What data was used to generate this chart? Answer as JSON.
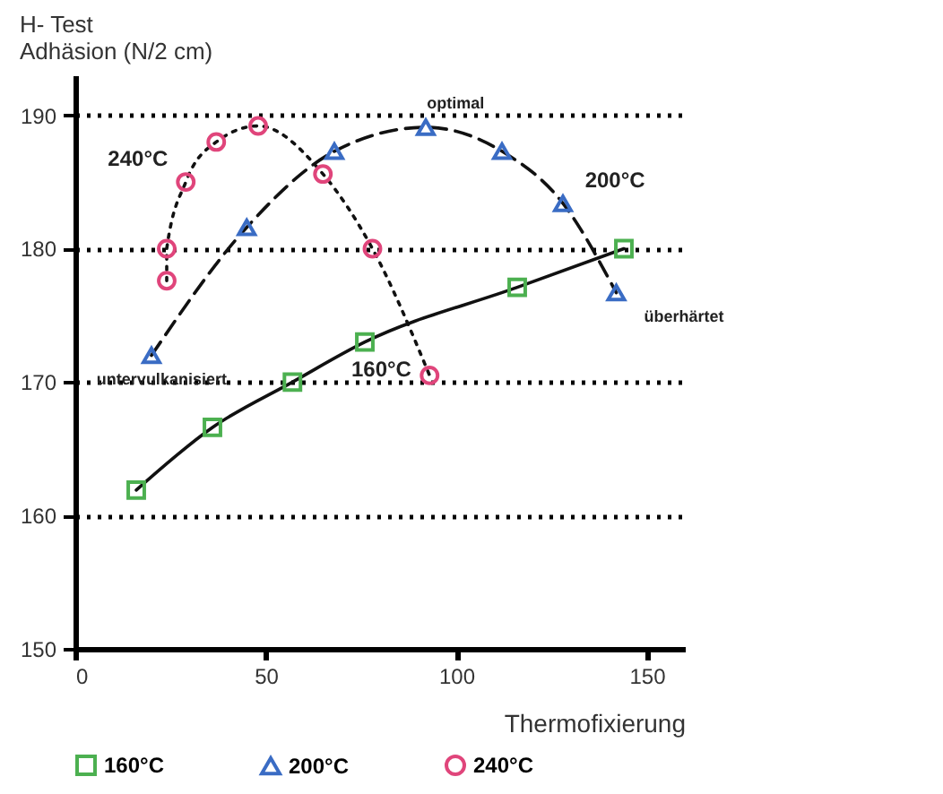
{
  "chart_data": {
    "type": "line",
    "title": "H- Test",
    "ylabel": "Adhäsion (N/2 cm)",
    "xlabel": "Thermofixierung",
    "xlim": [
      0,
      160
    ],
    "xticks": [
      0,
      50,
      100,
      150
    ],
    "ylim": [
      150,
      193
    ],
    "yticks": [
      150,
      160,
      170,
      180,
      190
    ],
    "grid": "y",
    "legend": "bottom",
    "series": [
      {
        "name": "160°C",
        "color": "#4cb050",
        "marker": "square",
        "line_style": "solid",
        "x": [
          16,
          36,
          57,
          76,
          116,
          144
        ],
        "values": [
          161.9,
          166.6,
          170,
          173,
          177.1,
          180
        ]
      },
      {
        "name": "200°C",
        "color": "#3a6cc4",
        "marker": "triangle",
        "line_style": "dashed",
        "x": [
          20,
          45,
          68,
          92,
          112,
          128,
          142
        ],
        "values": [
          172,
          181.6,
          187.3,
          189.1,
          187.3,
          183.4,
          176.7
        ]
      },
      {
        "name": "240°C",
        "color": "#e0457b",
        "marker": "circle",
        "line_style": "dotted",
        "x": [
          24,
          24,
          29,
          37,
          48,
          65,
          78,
          93
        ],
        "values": [
          177.6,
          180,
          185,
          188,
          189.2,
          185.6,
          180,
          170.5
        ]
      }
    ],
    "annotations": [
      {
        "text": "240°C",
        "x": 29,
        "y": 185
      },
      {
        "text": "optimal",
        "x": 92,
        "y": 189.1
      },
      {
        "text": "200°C",
        "x": 128,
        "y": 183.4
      },
      {
        "text": "überhärtet",
        "x": 142,
        "y": 176.7
      },
      {
        "text": "untervulkanisiert",
        "x": 20,
        "y": 172
      },
      {
        "text": "160°C",
        "x": 76,
        "y": 173
      }
    ]
  }
}
